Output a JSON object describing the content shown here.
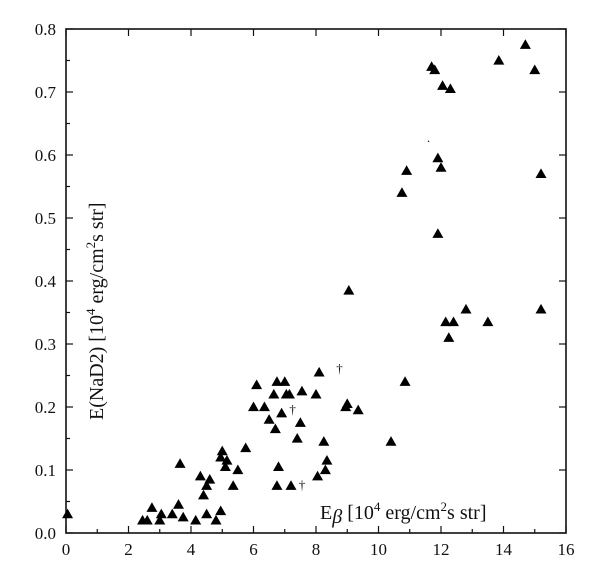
{
  "chart_data": {
    "type": "scatter",
    "xlabel_parts": {
      "base": "E",
      "sub": "β",
      "open": " [10",
      "exp1": "4",
      "mid": " erg/cm",
      "exp2": "2",
      "end": "s str]"
    },
    "ylabel_parts": {
      "base": "E(NaD2) [10",
      "exp1": "4",
      "mid": " erg/cm",
      "exp2": "2",
      "end": "s str]"
    },
    "xlim": [
      0,
      16
    ],
    "ylim": [
      0,
      0.8
    ],
    "x_ticks": [
      "0",
      "2",
      "4",
      "6",
      "8",
      "10",
      "12",
      "14",
      "16"
    ],
    "y_ticks": [
      "0.0",
      "0.1",
      "0.2",
      "0.3",
      "0.4",
      "0.5",
      "0.6",
      "0.7",
      "0.8"
    ],
    "grid": false,
    "marker": "triangle",
    "points": [
      [
        0.05,
        0.03
      ],
      [
        2.45,
        0.02
      ],
      [
        2.6,
        0.02
      ],
      [
        2.75,
        0.04
      ],
      [
        3.0,
        0.02
      ],
      [
        3.05,
        0.03
      ],
      [
        3.4,
        0.03
      ],
      [
        3.6,
        0.045
      ],
      [
        3.65,
        0.11
      ],
      [
        3.75,
        0.025
      ],
      [
        4.15,
        0.02
      ],
      [
        4.3,
        0.09
      ],
      [
        4.4,
        0.06
      ],
      [
        4.5,
        0.075
      ],
      [
        4.5,
        0.03
      ],
      [
        4.6,
        0.085
      ],
      [
        4.8,
        0.02
      ],
      [
        4.95,
        0.035
      ],
      [
        4.95,
        0.12
      ],
      [
        5.0,
        0.13
      ],
      [
        5.1,
        0.105
      ],
      [
        5.15,
        0.115
      ],
      [
        5.35,
        0.075
      ],
      [
        5.5,
        0.1
      ],
      [
        5.75,
        0.135
      ],
      [
        6.0,
        0.2
      ],
      [
        6.1,
        0.235
      ],
      [
        6.35,
        0.2
      ],
      [
        6.5,
        0.18
      ],
      [
        6.65,
        0.22
      ],
      [
        6.7,
        0.165
      ],
      [
        6.75,
        0.075
      ],
      [
        6.75,
        0.24
      ],
      [
        6.8,
        0.105
      ],
      [
        6.9,
        0.19
      ],
      [
        7.0,
        0.24
      ],
      [
        7.05,
        0.22
      ],
      [
        7.15,
        0.22
      ],
      [
        7.2,
        0.075
      ],
      [
        7.4,
        0.15
      ],
      [
        7.5,
        0.175
      ],
      [
        7.55,
        0.225
      ],
      [
        8.0,
        0.22
      ],
      [
        8.05,
        0.09
      ],
      [
        8.1,
        0.255
      ],
      [
        8.25,
        0.145
      ],
      [
        8.3,
        0.1
      ],
      [
        8.35,
        0.115
      ],
      [
        8.95,
        0.2
      ],
      [
        9.0,
        0.205
      ],
      [
        9.05,
        0.385
      ],
      [
        9.35,
        0.195
      ],
      [
        10.4,
        0.145
      ],
      [
        10.75,
        0.54
      ],
      [
        10.85,
        0.24
      ],
      [
        10.9,
        0.575
      ],
      [
        11.7,
        0.74
      ],
      [
        11.8,
        0.735
      ],
      [
        11.9,
        0.595
      ],
      [
        11.9,
        0.475
      ],
      [
        12.0,
        0.58
      ],
      [
        12.05,
        0.71
      ],
      [
        12.15,
        0.335
      ],
      [
        12.25,
        0.31
      ],
      [
        12.3,
        0.705
      ],
      [
        12.4,
        0.335
      ],
      [
        12.8,
        0.355
      ],
      [
        13.5,
        0.335
      ],
      [
        13.85,
        0.75
      ],
      [
        14.7,
        0.775
      ],
      [
        15.0,
        0.735
      ],
      [
        15.2,
        0.355
      ],
      [
        15.2,
        0.57
      ]
    ],
    "annotations": [
      {
        "text": "†",
        "x": 7.25,
        "y": 0.19
      },
      {
        "text": "†",
        "x": 8.75,
        "y": 0.255
      },
      {
        "text": "†",
        "x": 7.55,
        "y": 0.07
      },
      {
        "text": "·",
        "x": 11.6,
        "y": 0.615
      }
    ]
  }
}
